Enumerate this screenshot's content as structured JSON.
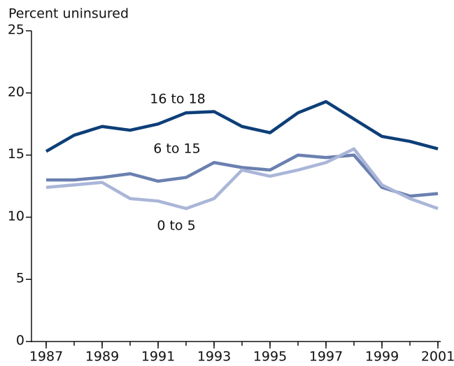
{
  "chart_data": {
    "type": "line",
    "y_label": "Percent uninsured",
    "x": [
      1987,
      1988,
      1989,
      1990,
      1991,
      1992,
      1993,
      1994,
      1995,
      1996,
      1997,
      1998,
      1999,
      2000,
      2001
    ],
    "xlim": [
      1987,
      2001
    ],
    "xticks": [
      1987,
      1989,
      1991,
      1993,
      1995,
      1997,
      1999,
      2001
    ],
    "ylim": [
      0,
      25
    ],
    "yticks": [
      0,
      5,
      10,
      15,
      20,
      25
    ],
    "grid": false,
    "series": [
      {
        "name": "16 to 18",
        "color": "#0d3f78",
        "values": [
          15.3,
          16.6,
          17.3,
          17.0,
          17.5,
          18.4,
          18.5,
          17.3,
          16.8,
          18.4,
          19.3,
          17.9,
          16.5,
          16.1,
          15.5
        ]
      },
      {
        "name": "6 to 15",
        "color": "#6a80b0",
        "values": [
          13.0,
          13.0,
          13.2,
          13.5,
          12.9,
          13.2,
          14.4,
          14.0,
          13.8,
          15.0,
          14.8,
          15.0,
          12.4,
          11.7,
          11.9
        ]
      },
      {
        "name": "0 to 5",
        "color": "#aab6d8",
        "values": [
          12.4,
          12.6,
          12.8,
          11.5,
          11.3,
          10.7,
          11.5,
          13.8,
          13.3,
          13.8,
          14.4,
          15.5,
          12.6,
          11.5,
          10.7
        ]
      }
    ]
  }
}
